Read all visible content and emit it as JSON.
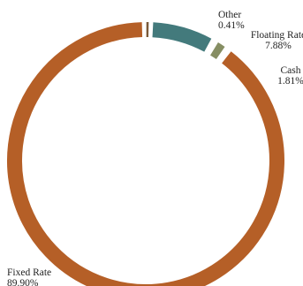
{
  "chart_data": {
    "type": "pie",
    "style": "donut",
    "start": "top, clockwise",
    "slices": [
      {
        "name": "Other",
        "value": 0.41,
        "display": "0.41%",
        "color": "#7a5a3a"
      },
      {
        "name": "Floating Rate",
        "value": 7.88,
        "display": "7.88%",
        "color": "#437a7c"
      },
      {
        "name": "Cash",
        "value": 1.81,
        "display": "1.81%",
        "color": "#868e63"
      },
      {
        "name": "Fixed Rate",
        "value": 89.9,
        "display": "89.90%",
        "color": "#b55f27"
      }
    ]
  }
}
